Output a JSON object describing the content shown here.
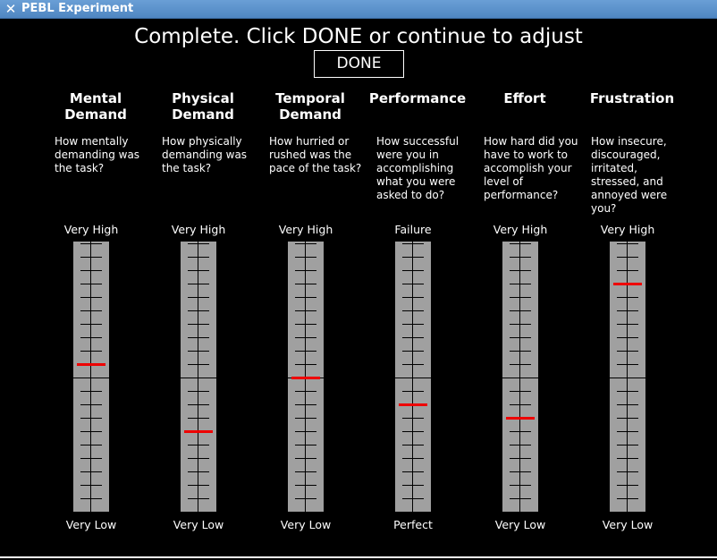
{
  "window": {
    "title": "PEBL Experiment",
    "close_icon": "close-icon"
  },
  "instruction": "Complete. Click DONE or continue to adjust",
  "done_label": "DONE",
  "colors": {
    "bar": "#a0a0a0",
    "marker": "#ee0000",
    "background": "#000000"
  },
  "scale": {
    "steps": 20
  },
  "dimensions": [
    {
      "id": "mental",
      "title": "Mental\nDemand",
      "question": "How mentally\ndemanding was\nthe task?",
      "top": "Very High",
      "bottom": "Very Low",
      "value": 11
    },
    {
      "id": "physical",
      "title": "Physical\nDemand",
      "question": "How physically\ndemanding was\nthe task?",
      "top": "Very High",
      "bottom": "Very Low",
      "value": 6
    },
    {
      "id": "temporal",
      "title": "Temporal\nDemand",
      "question": "How hurried or\nrushed was the\npace of the task?",
      "top": "Very High",
      "bottom": "Very Low",
      "value": 10
    },
    {
      "id": "performance",
      "title": "Performance",
      "question": "How successful\nwere you in\naccomplishing\nwhat you were\nasked to do?",
      "top": "Failure",
      "bottom": "Perfect",
      "value": 8
    },
    {
      "id": "effort",
      "title": "Effort",
      "question": "How hard did you\nhave to work to\naccomplish your\nlevel of\nperformance?",
      "top": "Very High",
      "bottom": "Very Low",
      "value": 7
    },
    {
      "id": "frustration",
      "title": "Frustration",
      "question": "How insecure,\ndiscouraged,\nirritated,\nstressed, and\nannoyed were\nyou?",
      "top": "Very High",
      "bottom": "Very Low",
      "value": 17
    }
  ]
}
